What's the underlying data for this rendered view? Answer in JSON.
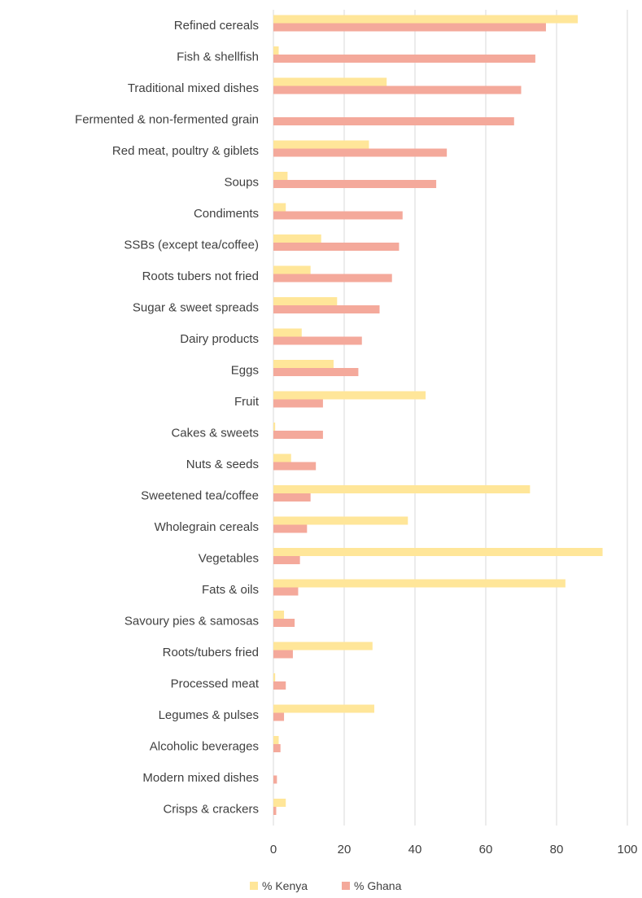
{
  "chart_data": {
    "type": "bar",
    "orientation": "horizontal",
    "categories": [
      "Refined cereals",
      "Fish & shellfish",
      "Traditional mixed dishes",
      "Fermented & non-fermented grain",
      "Red meat, poultry & giblets",
      "Soups",
      "Condiments",
      "SSBs (except tea/coffee)",
      "Roots tubers not fried",
      "Sugar & sweet spreads",
      "Dairy products",
      "Eggs",
      "Fruit",
      "Cakes & sweets",
      "Nuts & seeds",
      "Sweetened tea/coffee",
      "Wholegrain cereals",
      "Vegetables",
      "Fats & oils",
      "Savoury pies & samosas",
      "Roots/tubers fried",
      "Processed meat",
      "Legumes & pulses",
      "Alcoholic beverages",
      "Modern mixed dishes",
      "Crisps & crackers"
    ],
    "series": [
      {
        "name": "% Kenya",
        "color": "#ffe699",
        "values": [
          86,
          1.5,
          32,
          0,
          27,
          4,
          3.5,
          13.5,
          10.5,
          18,
          8,
          17,
          43,
          0.5,
          5,
          72.5,
          38,
          93,
          82.5,
          3,
          28,
          0.5,
          28.5,
          1.5,
          0,
          3.5
        ]
      },
      {
        "name": "% Ghana",
        "color": "#f4a99b",
        "values": [
          77,
          74,
          70,
          68,
          49,
          46,
          36.5,
          35.5,
          33.5,
          30,
          25,
          24,
          14,
          14,
          12,
          10.5,
          9.5,
          7.5,
          7,
          6,
          5.5,
          3.5,
          3,
          2,
          1,
          0.8
        ]
      }
    ],
    "xlim": [
      0,
      100
    ],
    "xticks": [
      "0",
      "20",
      "40",
      "60",
      "80",
      "100"
    ],
    "grid": true,
    "legend_position": "bottom"
  }
}
